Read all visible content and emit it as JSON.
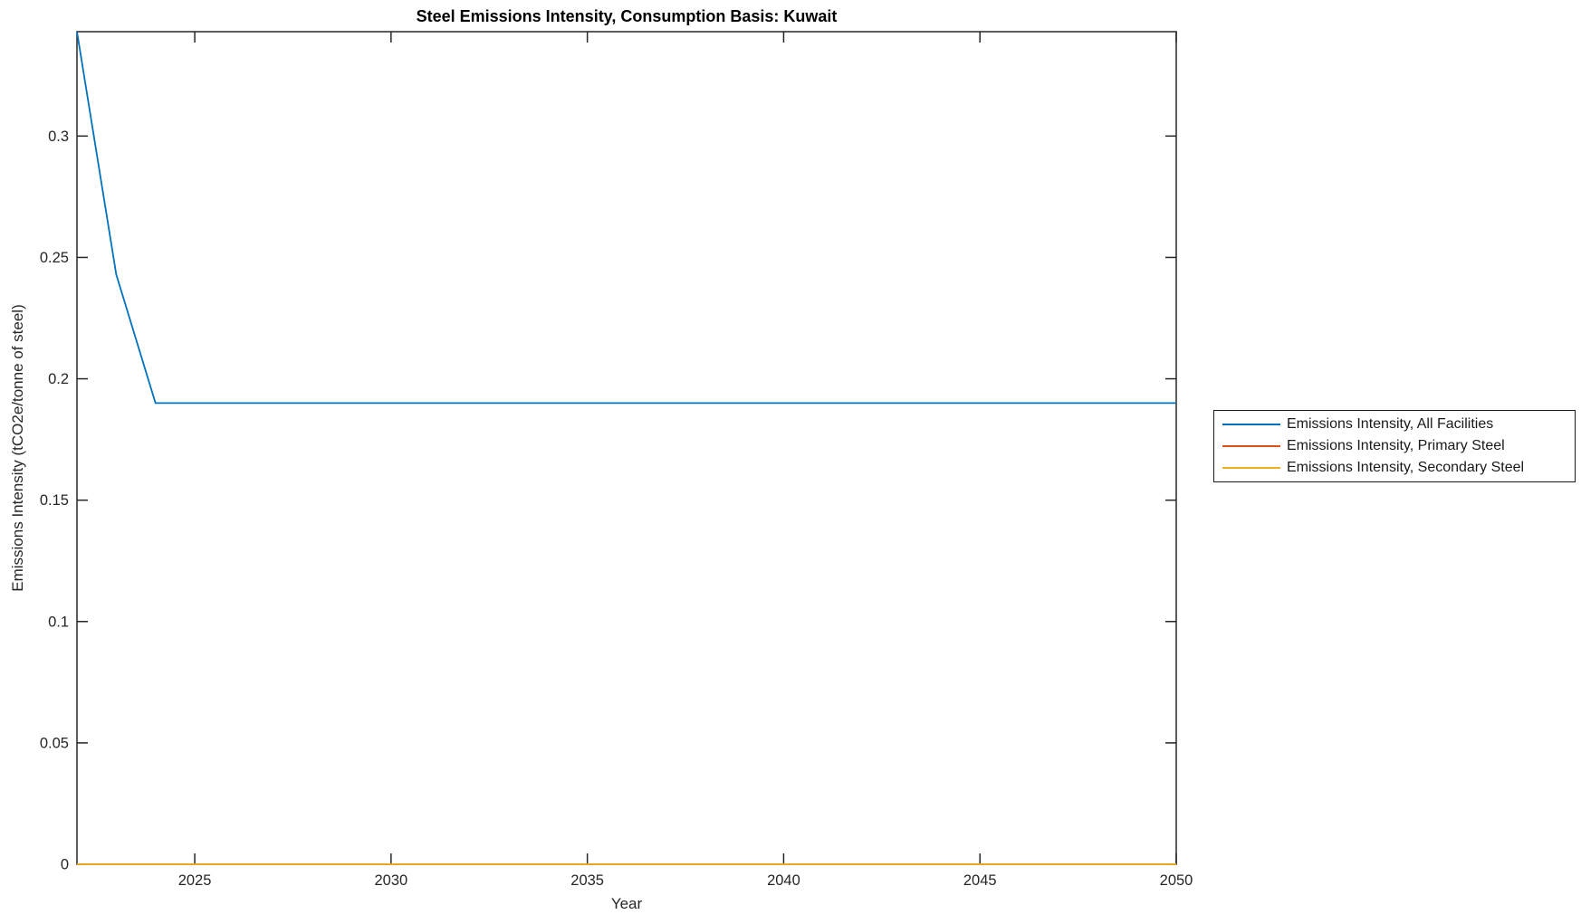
{
  "figure": {
    "background_color": "#ffffff",
    "axis_color": "#262626",
    "title_color": "#000000"
  },
  "chart_data": {
    "type": "line",
    "title": "Steel Emissions Intensity, Consumption Basis: Kuwait",
    "xlabel": "Year",
    "ylabel": "Emissions Intensity (tCO2e/tonne of steel)",
    "xlim": [
      2022,
      2050
    ],
    "ylim": [
      0,
      0.343
    ],
    "x_ticks": [
      2025,
      2030,
      2035,
      2040,
      2045,
      2050
    ],
    "x_tick_labels": [
      "2025",
      "2030",
      "2035",
      "2040",
      "2045",
      "2050"
    ],
    "y_ticks": [
      0,
      0.05,
      0.1,
      0.15,
      0.2,
      0.25,
      0.3
    ],
    "y_tick_labels": [
      "0",
      "0.05",
      "0.1",
      "0.15",
      "0.2",
      "0.25",
      "0.3"
    ],
    "grid": false,
    "box": true,
    "tick_direction": "in",
    "legend_position": "outside-right-middle",
    "series": [
      {
        "name": "Emissions Intensity, All Facilities",
        "color": "#0072BD",
        "points": [
          [
            2022,
            0.343
          ],
          [
            2023,
            0.243
          ],
          [
            2024,
            0.19
          ],
          [
            2050,
            0.19
          ]
        ]
      },
      {
        "name": "Emissions Intensity, Primary Steel",
        "color": "#D95319",
        "points": [
          [
            2022,
            0
          ],
          [
            2050,
            0
          ]
        ]
      },
      {
        "name": "Emissions Intensity, Secondary Steel",
        "color": "#EDB120",
        "points": [
          [
            2022,
            0
          ],
          [
            2050,
            0
          ]
        ]
      }
    ]
  }
}
